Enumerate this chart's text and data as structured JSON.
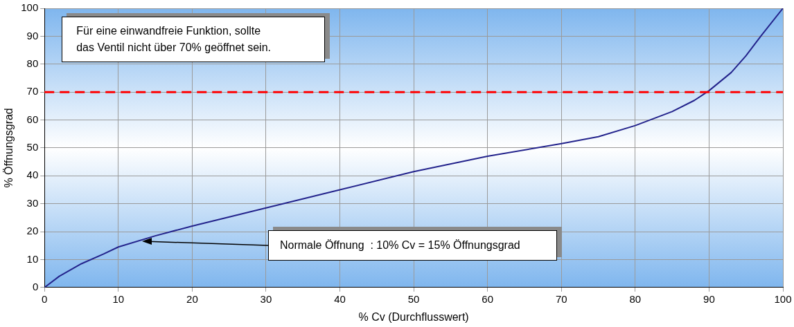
{
  "chart_data": {
    "type": "line",
    "xlabel": "% Cv (Durchflusswert)",
    "ylabel": "% Öffnungsgrad",
    "x": [
      0,
      2,
      5,
      8,
      10,
      15,
      20,
      30,
      40,
      50,
      60,
      70,
      75,
      80,
      85,
      88,
      90,
      93,
      95,
      97,
      100
    ],
    "series": [
      {
        "color": "#23238c",
        "values": [
          0,
          4,
          8.5,
          12,
          14.5,
          18.5,
          22,
          28.5,
          35,
          41.5,
          47,
          51.5,
          54,
          58,
          63,
          67,
          70.5,
          77,
          83,
          90,
          100
        ]
      }
    ],
    "xlim": [
      0,
      100
    ],
    "ylim": [
      0,
      100
    ],
    "xticks": [
      0,
      10,
      20,
      30,
      40,
      50,
      60,
      70,
      80,
      90,
      100
    ],
    "yticks": [
      0,
      10,
      20,
      30,
      40,
      50,
      60,
      70,
      80,
      90,
      100
    ],
    "grid": true,
    "legend": false,
    "marker": "none",
    "line_style": "solid",
    "ref_lines": [
      {
        "axis": "y",
        "value": 70,
        "color": "#ff0000",
        "line_style": "dashed"
      }
    ],
    "annotations": [
      "Für eine einwandfreie Funktion, sollte das Ventil nicht über 70% geöffnet sein.",
      "Normale Öffnung  : 10% Cv = 15% Öffnungsgrad"
    ]
  }
}
